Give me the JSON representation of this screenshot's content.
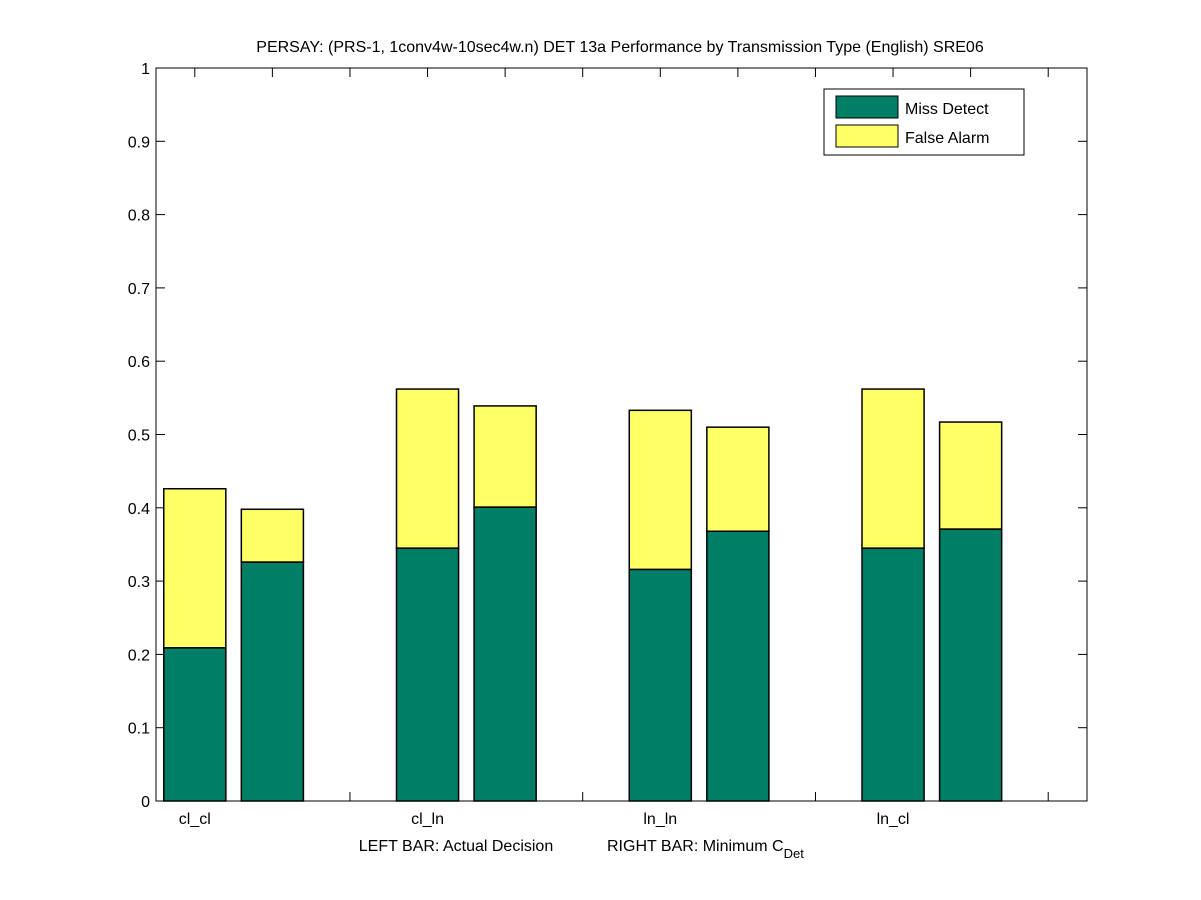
{
  "chart_data": {
    "type": "bar",
    "stacked": true,
    "title": "PERSAY: (PRS-1, 1conv4w-10sec4w.n) DET 13a Performance by Transmission Type (English) SRE06",
    "xlabel_parts": {
      "left": "LEFT BAR: Actual Decision",
      "right": "RIGHT BAR: Minimum C",
      "subscript": "Det"
    },
    "ylabel": "",
    "ylim": [
      0,
      1
    ],
    "yticks": [
      "0",
      "0.1",
      "0.2",
      "0.3",
      "0.4",
      "0.5",
      "0.6",
      "0.7",
      "0.8",
      "0.9",
      "1"
    ],
    "xlim": [
      0.5,
      12.5
    ],
    "categories": [
      "cl_cl",
      "cl_ln",
      "ln_ln",
      "ln_cl"
    ],
    "category_labels": [
      "cl_cl",
      "cl_ln",
      "ln_ln",
      "ln_cl"
    ],
    "bar_types": [
      "Actual Decision",
      "Minimum C_Det"
    ],
    "series": [
      {
        "name": "Miss Detect",
        "color": "#007f66",
        "actual": [
          0.209,
          0.345,
          0.316,
          0.345
        ],
        "minimum": [
          0.326,
          0.401,
          0.368,
          0.371
        ]
      },
      {
        "name": "False Alarm",
        "color": "#ffff66",
        "actual": [
          0.217,
          0.217,
          0.217,
          0.217
        ],
        "minimum": [
          0.072,
          0.138,
          0.142,
          0.146
        ]
      }
    ],
    "totals": {
      "actual": [
        0.426,
        0.562,
        0.533,
        0.562
      ],
      "minimum": [
        0.398,
        0.539,
        0.51,
        0.517
      ]
    },
    "legend": {
      "position": "top-right",
      "entries": [
        "Miss Detect",
        "False Alarm"
      ]
    },
    "grid": false
  }
}
